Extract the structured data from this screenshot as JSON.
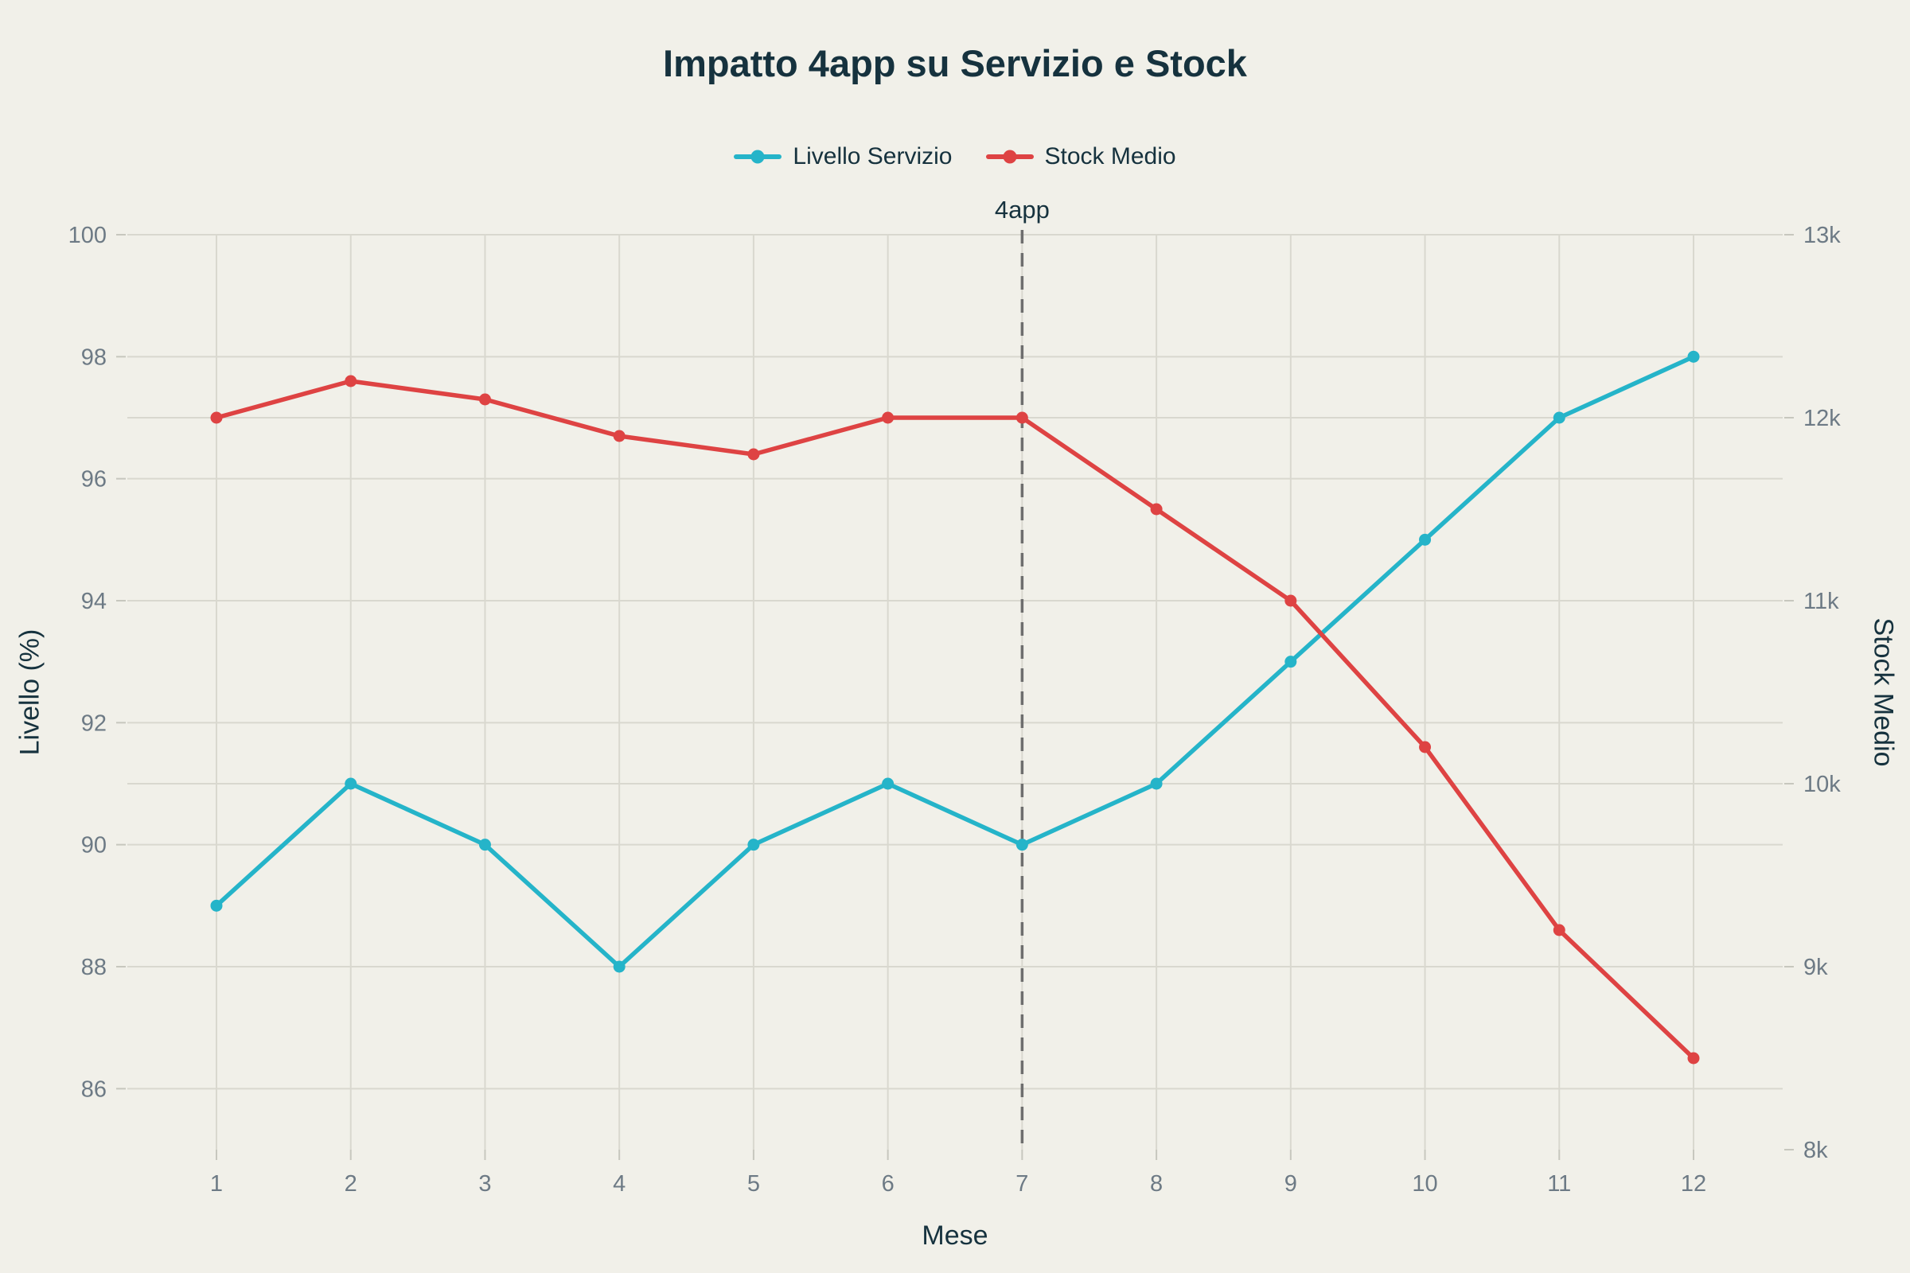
{
  "chart_data": {
    "type": "line",
    "title": "Impatto 4app su Servizio e Stock",
    "xlabel": "Mese",
    "ylabel_left": "Livello (%)",
    "ylabel_right": "Stock Medio",
    "x": [
      1,
      2,
      3,
      4,
      5,
      6,
      7,
      8,
      9,
      10,
      11,
      12
    ],
    "xticks": [
      "1",
      "2",
      "3",
      "4",
      "5",
      "6",
      "7",
      "8",
      "9",
      "10",
      "11",
      "12"
    ],
    "series": [
      {
        "name": "Livello Servizio",
        "axis": "left",
        "color": "#25b4c9",
        "values": [
          89,
          91,
          90,
          88,
          90,
          91,
          90,
          91,
          93,
          95,
          97,
          98
        ]
      },
      {
        "name": "Stock Medio",
        "axis": "right",
        "color": "#de4343",
        "values": [
          12000,
          12200,
          12100,
          11900,
          11800,
          12000,
          12000,
          11500,
          11000,
          10200,
          9200,
          8500
        ]
      }
    ],
    "ylim_left": [
      85,
      100
    ],
    "ylim_right": [
      8000,
      13000
    ],
    "yticks_left": [
      {
        "value": 100,
        "label": "100"
      },
      {
        "value": 98,
        "label": "98"
      },
      {
        "value": 96,
        "label": "96"
      },
      {
        "value": 94,
        "label": "94"
      },
      {
        "value": 92,
        "label": "92"
      },
      {
        "value": 90,
        "label": "90"
      },
      {
        "value": 88,
        "label": "88"
      },
      {
        "value": 86,
        "label": "86"
      }
    ],
    "yticks_right": [
      {
        "value": 13000,
        "label": "13k"
      },
      {
        "value": 12000,
        "label": "12k"
      },
      {
        "value": 11000,
        "label": "11k"
      },
      {
        "value": 10000,
        "label": "10k"
      },
      {
        "value": 9000,
        "label": "9k"
      },
      {
        "value": 8000,
        "label": "8k"
      }
    ],
    "vline": {
      "x": 7,
      "label": "4app",
      "style": "dashed",
      "color": "#6e6e6e"
    },
    "grid": true,
    "legend_position": "top",
    "background_color": "#f1f0e9"
  }
}
